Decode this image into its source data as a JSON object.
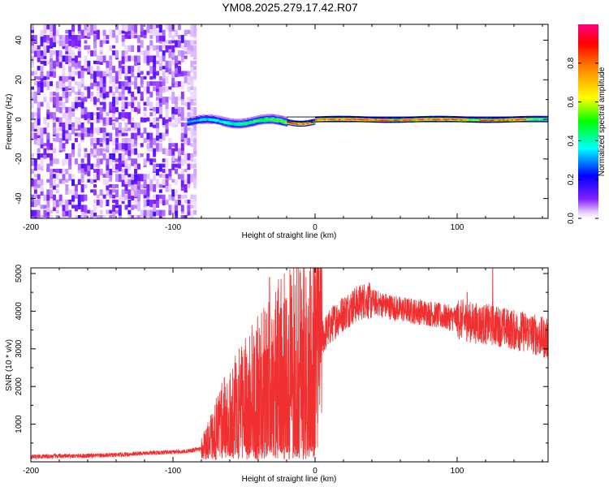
{
  "figure": {
    "title": "YM08.2025.279.17.42.R07"
  },
  "chart_data": [
    {
      "type": "heatmap",
      "title": "YM08.2025.279.17.42.R07",
      "xlabel": "Height of straight line (km)",
      "ylabel": "Frequency (Hz)",
      "xlim": [
        -200,
        164
      ],
      "ylim": [
        -50,
        48
      ],
      "xticks": [
        -200,
        -100,
        0,
        100
      ],
      "yticks": [
        -40,
        -20,
        0,
        20,
        40
      ],
      "colorbar": {
        "label": "Normalized spectral amplitude",
        "range": [
          0,
          1
        ],
        "ticks": [
          0.0,
          0.2,
          0.4,
          0.6,
          0.8
        ],
        "tick_labels": [
          "0.0",
          "0.2",
          "0.4",
          "0.6",
          "0.8"
        ]
      },
      "description_features": {
        "noise_region_x": [
          -200,
          -90
        ],
        "signal_center_frequency": 0,
        "signal_onset_x": -90,
        "strong_signal_x": [
          -20,
          164
        ]
      }
    },
    {
      "type": "line",
      "xlabel": "Height of straight line (km)",
      "ylabel": "SNR (10 * v/v)",
      "xlim": [
        -200,
        164
      ],
      "ylim": [
        0,
        5150
      ],
      "xticks": [
        -200,
        -100,
        0,
        100
      ],
      "yticks": [
        1000,
        2000,
        3000,
        4000,
        5000
      ],
      "series": [
        {
          "name": "SNR",
          "color": "#f03030",
          "x": [
            -200,
            -180,
            -160,
            -140,
            -120,
            -100,
            -90,
            -80,
            -75,
            -70,
            -65,
            -60,
            -55,
            -50,
            -45,
            -40,
            -35,
            -30,
            -25,
            -20,
            -15,
            -10,
            -5,
            0,
            5,
            10,
            15,
            20,
            25,
            30,
            35,
            40,
            50,
            60,
            70,
            80,
            90,
            100,
            110,
            120,
            130,
            140,
            150,
            160,
            164
          ],
          "values": [
            140,
            150,
            160,
            180,
            230,
            260,
            280,
            350,
            600,
            900,
            1150,
            1400,
            1550,
            1700,
            1900,
            2050,
            2200,
            2400,
            2600,
            2750,
            2900,
            2850,
            2950,
            3100,
            3300,
            3550,
            3800,
            3950,
            4100,
            4200,
            4300,
            4250,
            4150,
            4050,
            4000,
            3950,
            3850,
            3800,
            3700,
            3650,
            3600,
            3500,
            3450,
            3300,
            3250
          ]
        }
      ],
      "spikes": [
        {
          "x": -32,
          "value": 4900
        },
        {
          "x": -17,
          "value": 4950
        },
        {
          "x": 125,
          "value": 5150
        },
        {
          "x": 107,
          "value": 4500
        }
      ]
    }
  ]
}
